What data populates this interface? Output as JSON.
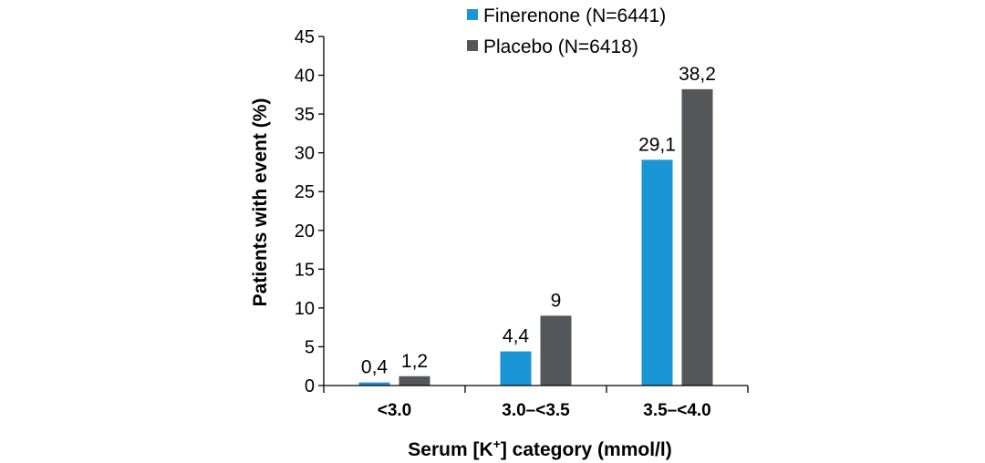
{
  "chart_data": {
    "type": "bar",
    "categories": [
      "<3.0",
      "3.0–<3.5",
      "3.5–<4.0"
    ],
    "series": [
      {
        "name": "Finerenone (N=6441)",
        "color": "#1a96d6",
        "values": [
          0.4,
          4.4,
          29.1
        ],
        "labels": [
          "0,4",
          "4,4",
          "29,1"
        ]
      },
      {
        "name": "Placebo (N=6418)",
        "color": "#53575a",
        "values": [
          1.2,
          9,
          38.2
        ],
        "labels": [
          "1,2",
          "9",
          "38,2"
        ]
      }
    ],
    "ylabel": "Patients with event (%)",
    "xlabel_main": "Serum [K",
    "xlabel_sup": "+",
    "xlabel_rest": "] category (mmol/l)",
    "ylim": [
      0,
      45
    ],
    "yticks": [
      "0",
      "5",
      "10",
      "15",
      "20",
      "25",
      "30",
      "35",
      "40",
      "45"
    ],
    "grid": false,
    "legend_position": "top-right"
  }
}
